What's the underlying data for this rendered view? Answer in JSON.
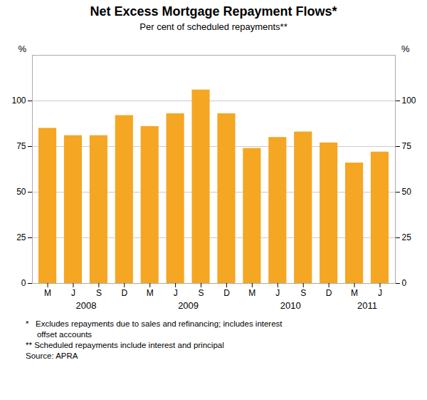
{
  "chart_data": {
    "type": "bar",
    "title": "Net Excess Mortgage Repayment Flows*",
    "subtitle": "Per cent of scheduled repayments**",
    "categories": [
      "M",
      "J",
      "S",
      "D",
      "M",
      "J",
      "S",
      "D",
      "M",
      "J",
      "S",
      "D",
      "M",
      "J"
    ],
    "values": [
      85,
      81,
      81,
      92,
      86,
      93,
      106,
      93,
      74,
      80,
      83,
      77,
      66,
      72
    ],
    "color": "#F5A623",
    "ylim": [
      0,
      125
    ],
    "yticks": [
      0,
      25,
      50,
      75,
      100
    ],
    "ylabel": "%",
    "y2label": "%",
    "grid": true,
    "annotations": [
      {
        "text": "2008",
        "x": 1.5
      },
      {
        "text": "2009",
        "x": 5.5
      },
      {
        "text": "2010",
        "x": 9.5
      },
      {
        "text": "2011",
        "x": 12.5
      }
    ],
    "footnotes": [
      "*   Excludes repayments due to sales and refinancing; includes interest",
      "     offset accounts",
      "** Scheduled repayments include interest and principal",
      "Source: APRA"
    ]
  }
}
